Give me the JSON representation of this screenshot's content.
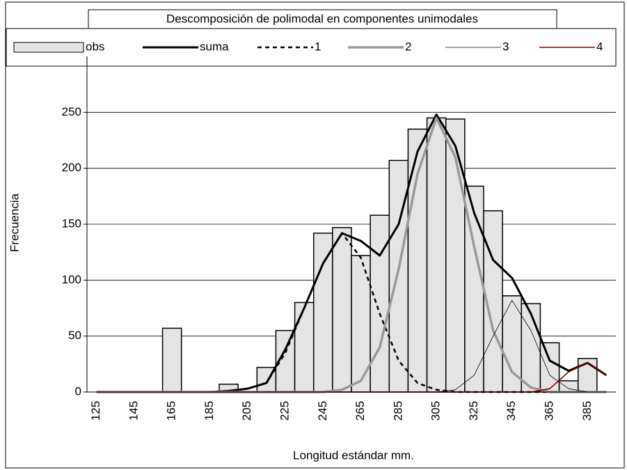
{
  "chart_data": {
    "type": "bar",
    "title": "Descomposición de polimodal en componentes unimodales",
    "x_label": "Longitud estándar mm.",
    "y_label": "Frecuencia",
    "categories": [
      "125",
      null,
      "145",
      null,
      "165",
      null,
      "185",
      null,
      "205",
      null,
      "225",
      null,
      "245",
      null,
      "265",
      null,
      "285",
      null,
      "305",
      null,
      "325",
      null,
      "345",
      null,
      "365",
      null,
      "385",
      null
    ],
    "series": [
      {
        "name": "obs",
        "type": "bar",
        "color": "#e4e4e4",
        "values": [
          0,
          0,
          0,
          0,
          57,
          0,
          0,
          7,
          0,
          22,
          55,
          80,
          142,
          147,
          122,
          158,
          207,
          235,
          245,
          244,
          184,
          162,
          86,
          79,
          44,
          10,
          30,
          0
        ]
      },
      {
        "name": "suma",
        "type": "line",
        "color": "#000000",
        "values": [
          0,
          0,
          0,
          0,
          0,
          0,
          0,
          1,
          3,
          8,
          38,
          75,
          115,
          142,
          135,
          122,
          150,
          215,
          248,
          220,
          160,
          118,
          102,
          70,
          28,
          19,
          26,
          15
        ]
      },
      {
        "name": "1",
        "type": "line",
        "style": "dashed",
        "color": "#000000",
        "values": [
          0,
          0,
          0,
          0,
          0,
          0,
          0,
          1,
          3,
          8,
          35,
          75,
          115,
          142,
          120,
          70,
          28,
          8,
          2,
          0,
          0,
          0,
          0,
          0,
          0,
          0,
          0,
          0
        ]
      },
      {
        "name": "2",
        "type": "line",
        "color": "#999999",
        "values": [
          0,
          0,
          0,
          0,
          0,
          0,
          0,
          0,
          0,
          0,
          0,
          0,
          0,
          2,
          10,
          40,
          110,
          195,
          245,
          210,
          130,
          55,
          18,
          4,
          0,
          0,
          0,
          0
        ]
      },
      {
        "name": "3",
        "type": "line",
        "color": "#000000",
        "values": [
          0,
          0,
          0,
          0,
          0,
          0,
          0,
          0,
          0,
          0,
          0,
          0,
          0,
          0,
          0,
          0,
          0,
          0,
          0,
          2,
          15,
          50,
          82,
          55,
          15,
          3,
          0,
          0
        ]
      },
      {
        "name": "4",
        "type": "line",
        "color": "#800000",
        "values": [
          0,
          0,
          0,
          0,
          0,
          0,
          0,
          0,
          0,
          0,
          0,
          0,
          0,
          0,
          0,
          0,
          0,
          0,
          0,
          0,
          0,
          0,
          0,
          0,
          3,
          18,
          26,
          15
        ]
      }
    ],
    "ylim": [
      0,
      300
    ],
    "yticks": [
      0,
      50,
      100,
      150,
      200,
      250
    ],
    "grid": true,
    "legend": "top"
  }
}
